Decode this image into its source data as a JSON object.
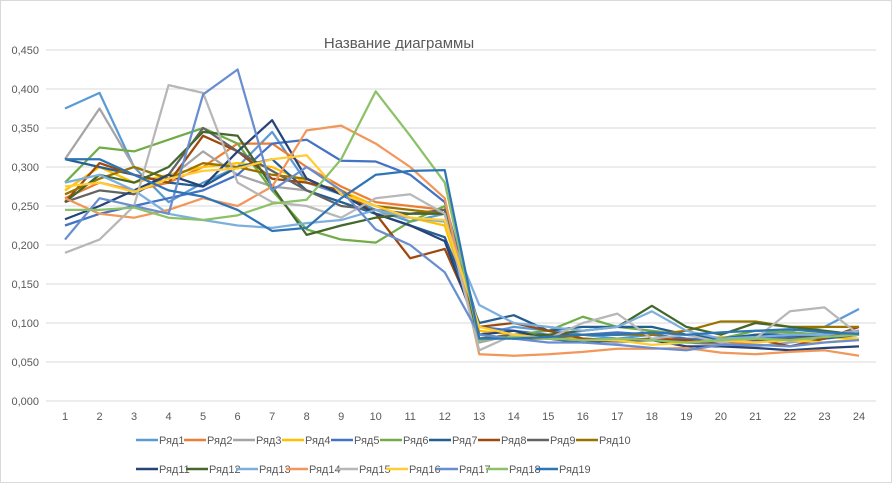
{
  "chart_data": {
    "type": "line",
    "title": "Название диаграммы",
    "xlabel": "",
    "ylabel": "",
    "x": [
      1,
      2,
      3,
      4,
      5,
      6,
      7,
      8,
      9,
      10,
      11,
      12,
      13,
      14,
      15,
      16,
      17,
      18,
      19,
      20,
      21,
      22,
      23,
      24
    ],
    "ylim": [
      0,
      0.45
    ],
    "yticks": [
      "0,000",
      "0,050",
      "0,100",
      "0,150",
      "0,200",
      "0,250",
      "0,300",
      "0,350",
      "0,400",
      "0,450"
    ],
    "grid": true,
    "legend": "bottom",
    "series": [
      {
        "name": "Ряд1",
        "color": "#5B9BD5",
        "values": [
          0.375,
          0.395,
          0.3,
          0.255,
          0.28,
          0.3,
          0.345,
          0.28,
          0.265,
          0.245,
          0.23,
          0.24,
          0.085,
          0.095,
          0.09,
          0.085,
          0.08,
          0.085,
          0.08,
          0.075,
          0.085,
          0.09,
          0.095,
          0.118
        ]
      },
      {
        "name": "Ряд2",
        "color": "#ED7D31",
        "values": [
          0.26,
          0.28,
          0.27,
          0.28,
          0.3,
          0.33,
          0.33,
          0.3,
          0.275,
          0.255,
          0.25,
          0.245,
          0.08,
          0.085,
          0.08,
          0.08,
          0.075,
          0.08,
          0.078,
          0.072,
          0.075,
          0.08,
          0.085,
          0.09
        ]
      },
      {
        "name": "Ряд3",
        "color": "#A5A5A5",
        "values": [
          0.31,
          0.375,
          0.3,
          0.285,
          0.32,
          0.29,
          0.275,
          0.27,
          0.255,
          0.24,
          0.235,
          0.23,
          0.075,
          0.085,
          0.08,
          0.078,
          0.075,
          0.078,
          0.075,
          0.072,
          0.07,
          0.075,
          0.08,
          0.085
        ]
      },
      {
        "name": "Ряд4",
        "color": "#FFC000",
        "values": [
          0.27,
          0.3,
          0.28,
          0.29,
          0.3,
          0.305,
          0.3,
          0.28,
          0.27,
          0.25,
          0.235,
          0.225,
          0.09,
          0.085,
          0.082,
          0.08,
          0.078,
          0.08,
          0.078,
          0.082,
          0.08,
          0.078,
          0.082,
          0.08
        ]
      },
      {
        "name": "Ряд5",
        "color": "#4472C4",
        "values": [
          0.225,
          0.24,
          0.25,
          0.26,
          0.27,
          0.29,
          0.33,
          0.335,
          0.308,
          0.307,
          0.29,
          0.255,
          0.095,
          0.09,
          0.085,
          0.085,
          0.088,
          0.085,
          0.08,
          0.078,
          0.08,
          0.082,
          0.085,
          0.088
        ]
      },
      {
        "name": "Ряд6",
        "color": "#70AD47",
        "values": [
          0.28,
          0.325,
          0.32,
          0.335,
          0.35,
          0.33,
          0.27,
          0.22,
          0.207,
          0.203,
          0.23,
          0.25,
          0.08,
          0.085,
          0.09,
          0.108,
          0.095,
          0.09,
          0.085,
          0.08,
          0.09,
          0.088,
          0.085,
          0.09
        ]
      },
      {
        "name": "Ряд7",
        "color": "#255E91",
        "values": [
          0.31,
          0.3,
          0.29,
          0.28,
          0.275,
          0.3,
          0.31,
          0.27,
          0.255,
          0.24,
          0.225,
          0.21,
          0.1,
          0.11,
          0.09,
          0.095,
          0.095,
          0.095,
          0.085,
          0.08,
          0.085,
          0.085,
          0.08,
          0.085
        ]
      },
      {
        "name": "Ряд8",
        "color": "#9E480E",
        "values": [
          0.255,
          0.305,
          0.29,
          0.28,
          0.34,
          0.32,
          0.285,
          0.28,
          0.27,
          0.24,
          0.183,
          0.195,
          0.095,
          0.1,
          0.09,
          0.08,
          0.078,
          0.08,
          0.078,
          0.075,
          0.08,
          0.07,
          0.08,
          0.095
        ]
      },
      {
        "name": "Ряд9",
        "color": "#636363",
        "values": [
          0.255,
          0.27,
          0.265,
          0.29,
          0.35,
          0.32,
          0.295,
          0.27,
          0.25,
          0.245,
          0.24,
          0.245,
          0.08,
          0.085,
          0.08,
          0.078,
          0.08,
          0.078,
          0.075,
          0.075,
          0.078,
          0.08,
          0.082,
          0.085
        ]
      },
      {
        "name": "Ряд10",
        "color": "#997300",
        "values": [
          0.265,
          0.285,
          0.3,
          0.285,
          0.305,
          0.3,
          0.29,
          0.285,
          0.265,
          0.25,
          0.245,
          0.24,
          0.085,
          0.08,
          0.08,
          0.085,
          0.085,
          0.085,
          0.09,
          0.102,
          0.102,
          0.095,
          0.095,
          0.095
        ]
      },
      {
        "name": "Ряд11",
        "color": "#264478",
        "values": [
          0.233,
          0.25,
          0.27,
          0.29,
          0.275,
          0.32,
          0.36,
          0.285,
          0.265,
          0.24,
          0.225,
          0.205,
          0.085,
          0.09,
          0.08,
          0.075,
          0.078,
          0.078,
          0.07,
          0.07,
          0.068,
          0.065,
          0.068,
          0.07
        ]
      },
      {
        "name": "Ряд12",
        "color": "#43682B",
        "values": [
          0.255,
          0.29,
          0.28,
          0.3,
          0.345,
          0.34,
          0.275,
          0.213,
          0.225,
          0.235,
          0.24,
          0.24,
          0.08,
          0.082,
          0.085,
          0.09,
          0.095,
          0.122,
          0.095,
          0.085,
          0.1,
          0.095,
          0.09,
          0.085
        ]
      },
      {
        "name": "Ряд13",
        "color": "#7CAFDD",
        "values": [
          0.28,
          0.29,
          0.27,
          0.24,
          0.232,
          0.225,
          0.222,
          0.228,
          0.232,
          0.245,
          0.235,
          0.23,
          0.123,
          0.1,
          0.095,
          0.09,
          0.095,
          0.115,
          0.09,
          0.08,
          0.082,
          0.085,
          0.085,
          0.09
        ]
      },
      {
        "name": "Ряд14",
        "color": "#F1975A",
        "values": [
          0.26,
          0.24,
          0.235,
          0.245,
          0.26,
          0.25,
          0.275,
          0.347,
          0.353,
          0.33,
          0.3,
          0.26,
          0.06,
          0.058,
          0.06,
          0.063,
          0.067,
          0.067,
          0.068,
          0.062,
          0.06,
          0.063,
          0.065,
          0.058
        ]
      },
      {
        "name": "Ряд15",
        "color": "#B7B7B7",
        "values": [
          0.19,
          0.207,
          0.25,
          0.405,
          0.395,
          0.28,
          0.255,
          0.25,
          0.235,
          0.26,
          0.265,
          0.24,
          0.065,
          0.085,
          0.08,
          0.1,
          0.112,
          0.08,
          0.085,
          0.075,
          0.08,
          0.115,
          0.12,
          0.085
        ]
      },
      {
        "name": "Ряд16",
        "color": "#FFCD33",
        "values": [
          0.275,
          0.28,
          0.268,
          0.285,
          0.295,
          0.298,
          0.31,
          0.315,
          0.265,
          0.25,
          0.235,
          0.232,
          0.095,
          0.085,
          0.08,
          0.078,
          0.078,
          0.072,
          0.075,
          0.078,
          0.075,
          0.078,
          0.075,
          0.08
        ]
      },
      {
        "name": "Ряд17",
        "color": "#698ED0",
        "values": [
          0.207,
          0.26,
          0.25,
          0.24,
          0.393,
          0.425,
          0.27,
          0.3,
          0.27,
          0.22,
          0.2,
          0.165,
          0.085,
          0.08,
          0.075,
          0.075,
          0.072,
          0.068,
          0.065,
          0.072,
          0.072,
          0.07,
          0.075,
          0.078
        ]
      },
      {
        "name": "Ряд18",
        "color": "#8CC168",
        "values": [
          0.245,
          0.245,
          0.248,
          0.235,
          0.232,
          0.238,
          0.253,
          0.258,
          0.31,
          0.397,
          0.34,
          0.28,
          0.078,
          0.082,
          0.08,
          0.078,
          0.08,
          0.078,
          0.075,
          0.078,
          0.08,
          0.078,
          0.082,
          0.085
        ]
      },
      {
        "name": "Ряд19",
        "color": "#2E75B6",
        "values": [
          0.31,
          0.31,
          0.29,
          0.27,
          0.262,
          0.245,
          0.218,
          0.222,
          0.26,
          0.29,
          0.295,
          0.296,
          0.08,
          0.08,
          0.082,
          0.085,
          0.085,
          0.088,
          0.085,
          0.088,
          0.09,
          0.092,
          0.088,
          0.086
        ]
      }
    ]
  }
}
